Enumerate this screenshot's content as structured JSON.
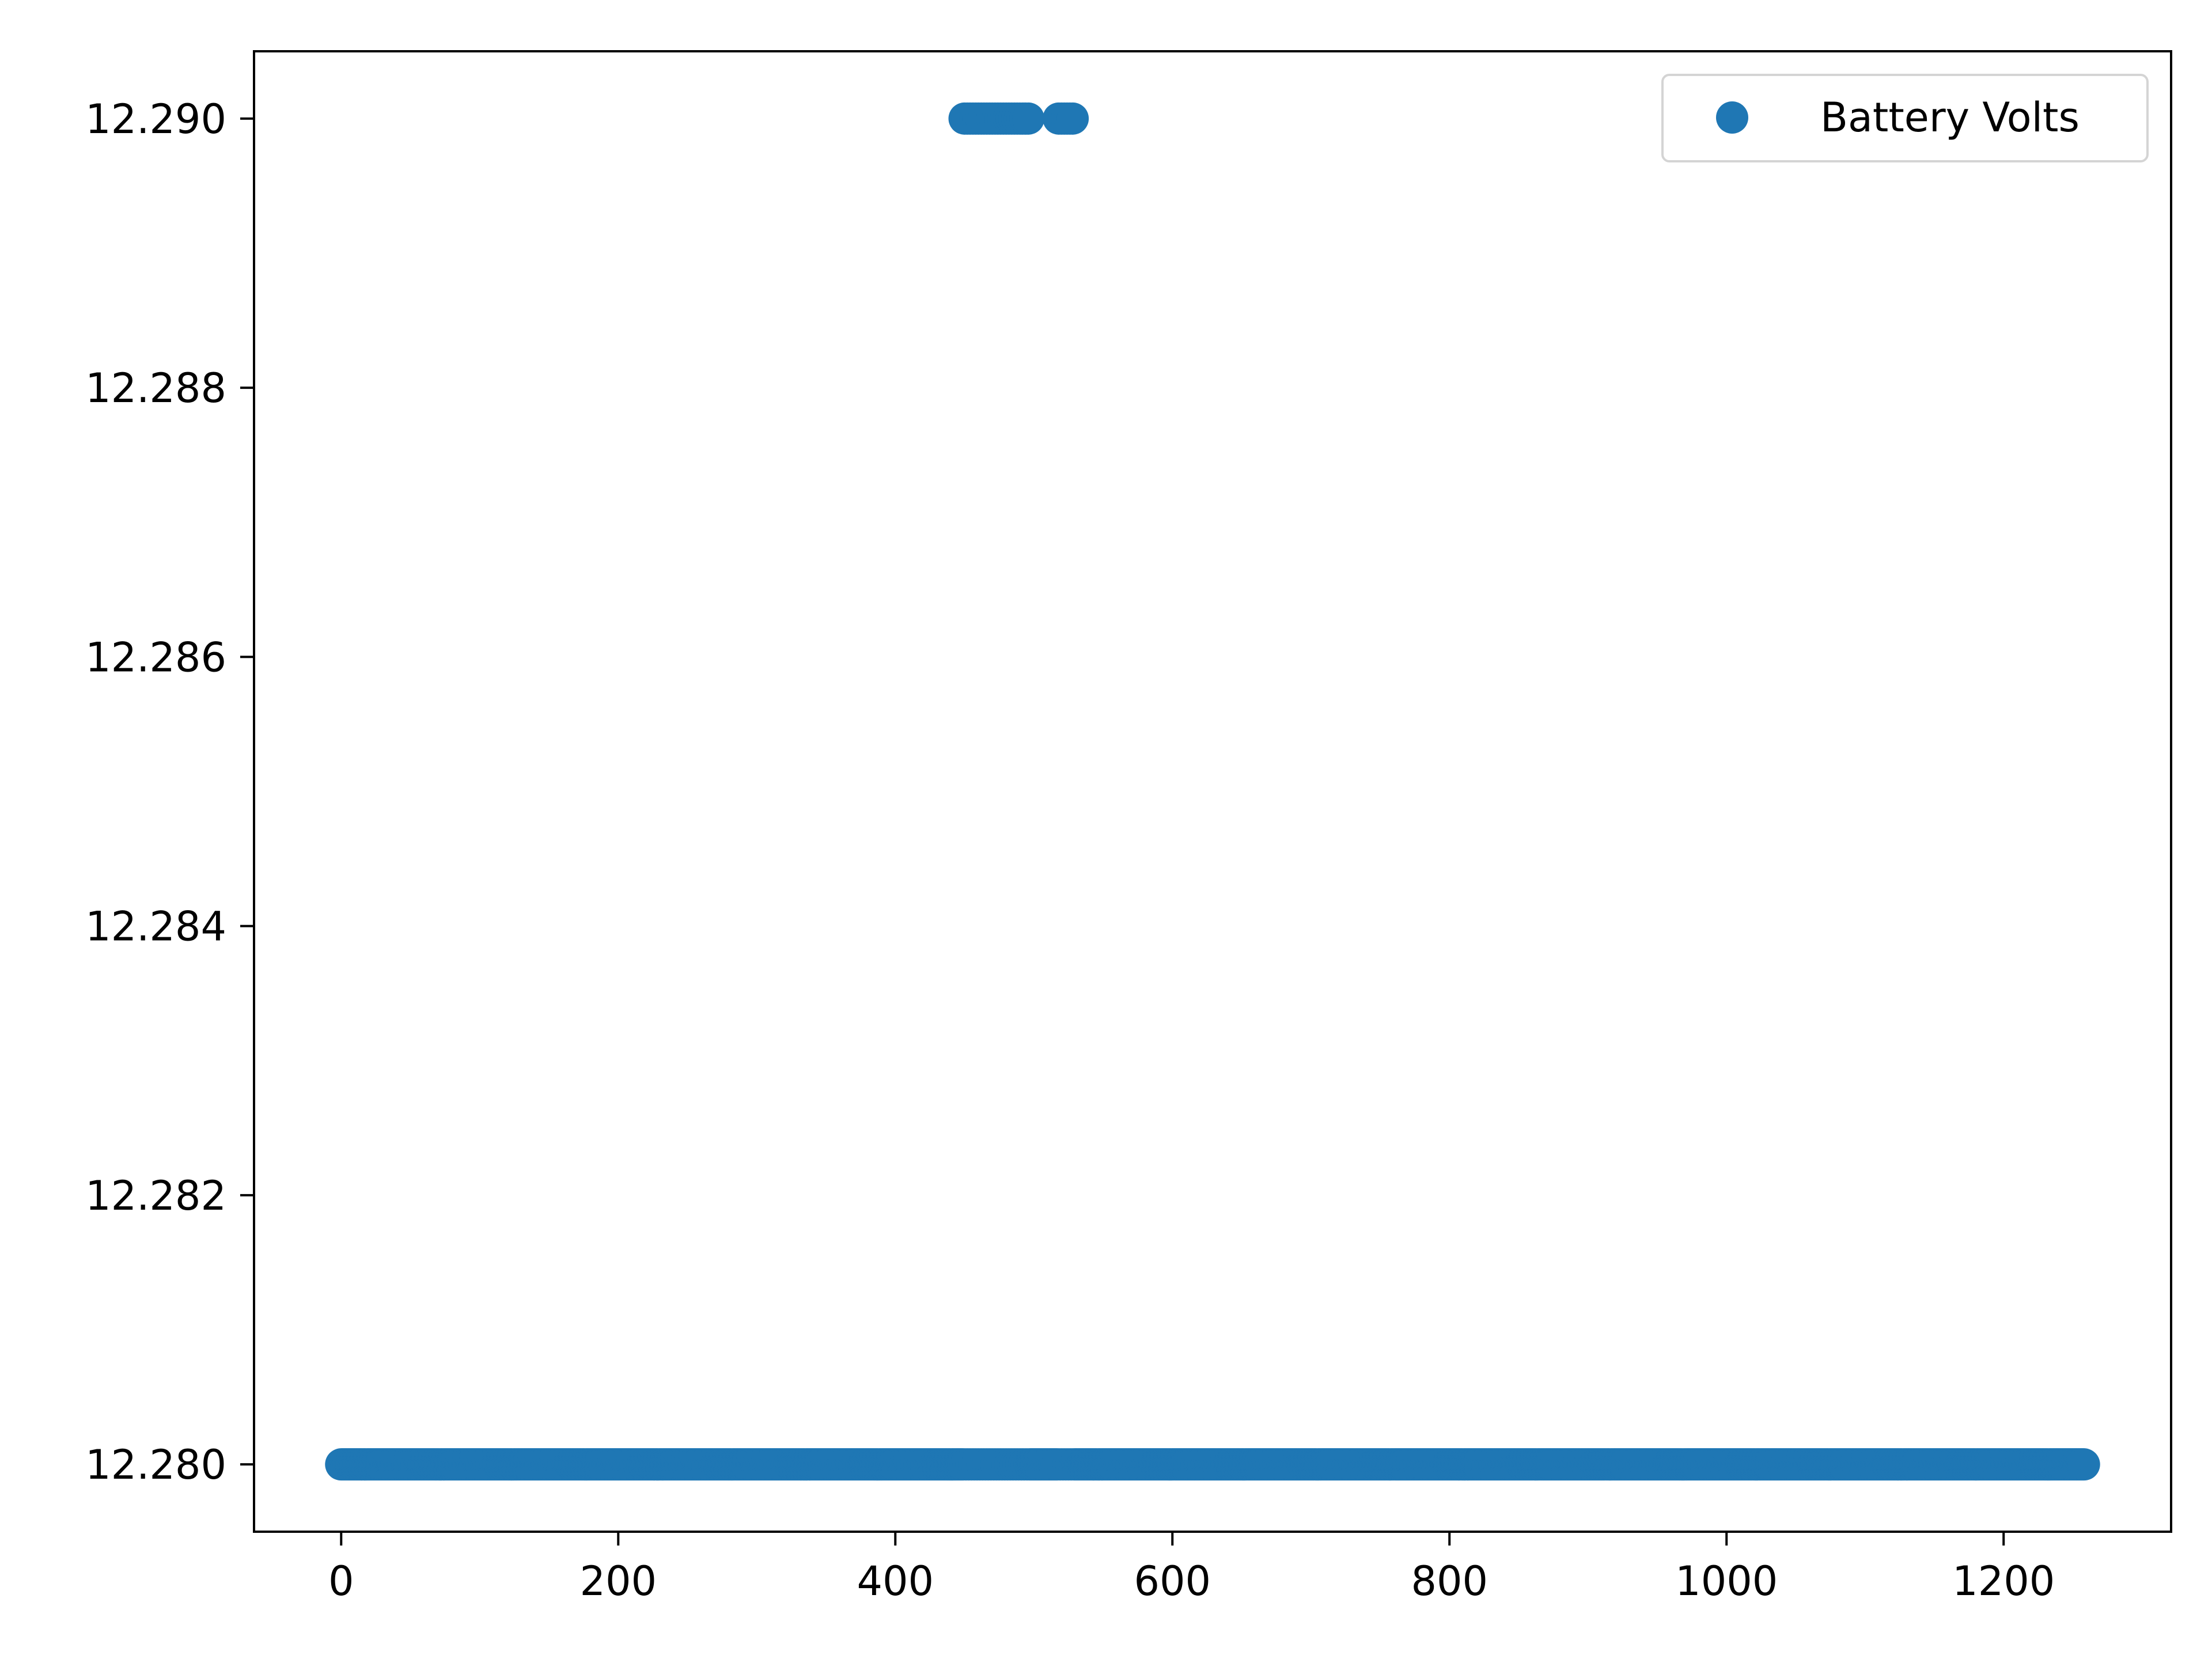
{
  "chart_data": {
    "type": "scatter",
    "title": "",
    "xlabel": "",
    "ylabel": "",
    "xlim": [
      -62.9,
      1320.9
    ],
    "ylim": [
      12.2795,
      12.2905
    ],
    "xticks": [
      0,
      200,
      400,
      600,
      800,
      1000,
      1200
    ],
    "xtick_labels": [
      "0",
      "200",
      "400",
      "600",
      "800",
      "1000",
      "1200"
    ],
    "yticks": [
      12.28,
      12.282,
      12.284,
      12.286,
      12.288,
      12.29
    ],
    "ytick_labels": [
      "12.280",
      "12.282",
      "12.284",
      "12.286",
      "12.288",
      "12.290"
    ],
    "grid": false,
    "legend": {
      "position": "top-right",
      "entries": [
        "Battery Volts"
      ]
    },
    "series": [
      {
        "name": "Battery Volts",
        "color": "#1f77b4",
        "marker": "circle",
        "low_value": 12.28,
        "high_value": 12.29,
        "x_range": [
          0,
          1258
        ],
        "high_x": [
          450,
          452,
          454,
          456,
          458,
          460,
          462,
          464,
          466,
          468,
          470,
          472,
          474,
          476,
          478,
          480,
          482,
          484,
          486,
          488,
          490,
          492,
          494,
          496,
          518,
          520,
          522,
          524,
          526,
          528
        ]
      }
    ]
  }
}
